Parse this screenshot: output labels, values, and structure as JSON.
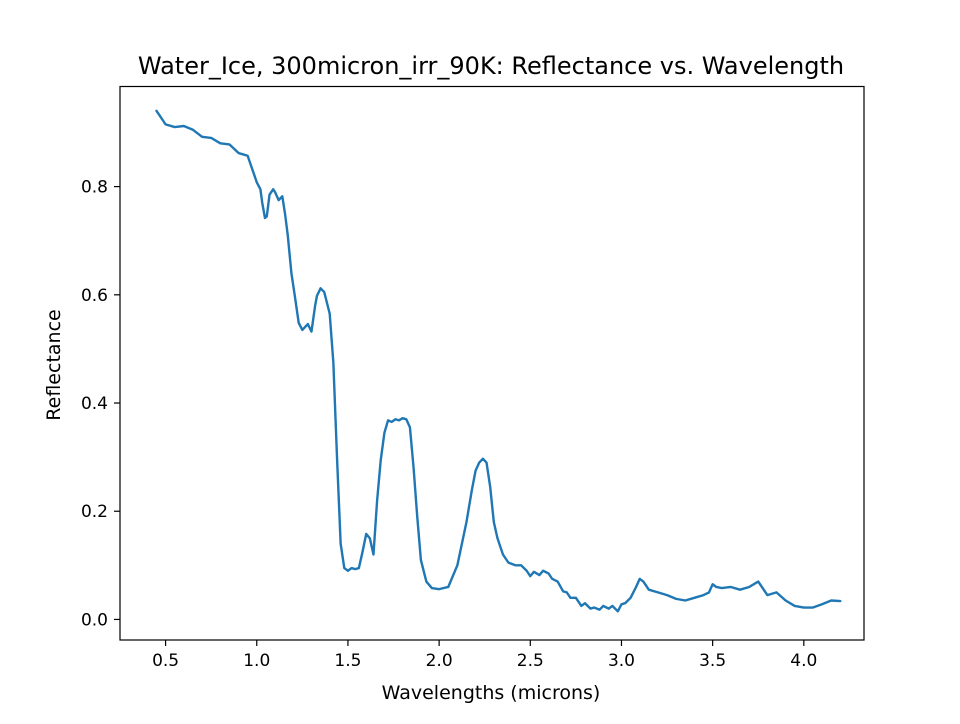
{
  "chart_data": {
    "type": "line",
    "title": "Water_Ice, 300micron_irr_90K: Reflectance vs. Wavelength",
    "xlabel": "Wavelengths (microns)",
    "ylabel": "Reflectance",
    "xlim": [
      0.25,
      4.33
    ],
    "ylim": [
      -0.038,
      0.985
    ],
    "xticks": [
      0.5,
      1.0,
      1.5,
      2.0,
      2.5,
      3.0,
      3.5,
      4.0
    ],
    "xtick_labels": [
      "0.5",
      "1.0",
      "1.5",
      "2.0",
      "2.5",
      "3.0",
      "3.5",
      "4.0"
    ],
    "yticks": [
      0.0,
      0.2,
      0.4,
      0.6,
      0.8
    ],
    "ytick_labels": [
      "0.0",
      "0.2",
      "0.4",
      "0.6",
      "0.8"
    ],
    "grid": false,
    "legend": "none",
    "series": [
      {
        "color": "#1f77b4",
        "x": [
          0.45,
          0.5,
          0.55,
          0.6,
          0.65,
          0.7,
          0.75,
          0.8,
          0.85,
          0.9,
          0.95,
          1.0,
          1.02,
          1.03,
          1.045,
          1.055,
          1.07,
          1.09,
          1.1,
          1.12,
          1.14,
          1.155,
          1.17,
          1.19,
          1.21,
          1.23,
          1.25,
          1.28,
          1.3,
          1.32,
          1.33,
          1.35,
          1.37,
          1.4,
          1.42,
          1.44,
          1.46,
          1.48,
          1.5,
          1.52,
          1.54,
          1.56,
          1.58,
          1.6,
          1.62,
          1.64,
          1.66,
          1.68,
          1.7,
          1.72,
          1.74,
          1.76,
          1.78,
          1.8,
          1.82,
          1.84,
          1.86,
          1.88,
          1.9,
          1.93,
          1.96,
          2.0,
          2.05,
          2.1,
          2.15,
          2.18,
          2.2,
          2.22,
          2.24,
          2.26,
          2.28,
          2.3,
          2.32,
          2.35,
          2.38,
          2.42,
          2.45,
          2.48,
          2.5,
          2.52,
          2.55,
          2.57,
          2.6,
          2.62,
          2.65,
          2.68,
          2.7,
          2.72,
          2.75,
          2.78,
          2.8,
          2.83,
          2.85,
          2.88,
          2.9,
          2.93,
          2.95,
          2.98,
          3.0,
          3.02,
          3.05,
          3.08,
          3.1,
          3.12,
          3.15,
          3.2,
          3.25,
          3.3,
          3.35,
          3.4,
          3.45,
          3.48,
          3.5,
          3.52,
          3.55,
          3.6,
          3.65,
          3.7,
          3.75,
          3.8,
          3.85,
          3.9,
          3.95,
          4.0,
          4.05,
          4.1,
          4.15,
          4.2
        ],
        "y": [
          0.94,
          0.915,
          0.91,
          0.912,
          0.905,
          0.892,
          0.89,
          0.88,
          0.878,
          0.862,
          0.857,
          0.808,
          0.795,
          0.77,
          0.742,
          0.745,
          0.785,
          0.795,
          0.79,
          0.775,
          0.782,
          0.75,
          0.71,
          0.64,
          0.595,
          0.548,
          0.535,
          0.546,
          0.532,
          0.58,
          0.598,
          0.612,
          0.605,
          0.565,
          0.475,
          0.3,
          0.14,
          0.095,
          0.09,
          0.095,
          0.093,
          0.095,
          0.125,
          0.158,
          0.15,
          0.12,
          0.22,
          0.295,
          0.345,
          0.368,
          0.365,
          0.37,
          0.368,
          0.372,
          0.37,
          0.355,
          0.28,
          0.19,
          0.11,
          0.07,
          0.058,
          0.056,
          0.06,
          0.1,
          0.18,
          0.24,
          0.275,
          0.29,
          0.297,
          0.29,
          0.245,
          0.18,
          0.15,
          0.12,
          0.105,
          0.1,
          0.1,
          0.09,
          0.08,
          0.088,
          0.082,
          0.09,
          0.085,
          0.075,
          0.07,
          0.052,
          0.05,
          0.04,
          0.04,
          0.025,
          0.03,
          0.02,
          0.022,
          0.018,
          0.025,
          0.02,
          0.025,
          0.015,
          0.028,
          0.03,
          0.04,
          0.06,
          0.075,
          0.07,
          0.055,
          0.05,
          0.045,
          0.038,
          0.035,
          0.04,
          0.045,
          0.05,
          0.065,
          0.06,
          0.058,
          0.06,
          0.055,
          0.06,
          0.07,
          0.045,
          0.05,
          0.035,
          0.025,
          0.022,
          0.022,
          0.028,
          0.035,
          0.034
        ]
      }
    ]
  }
}
